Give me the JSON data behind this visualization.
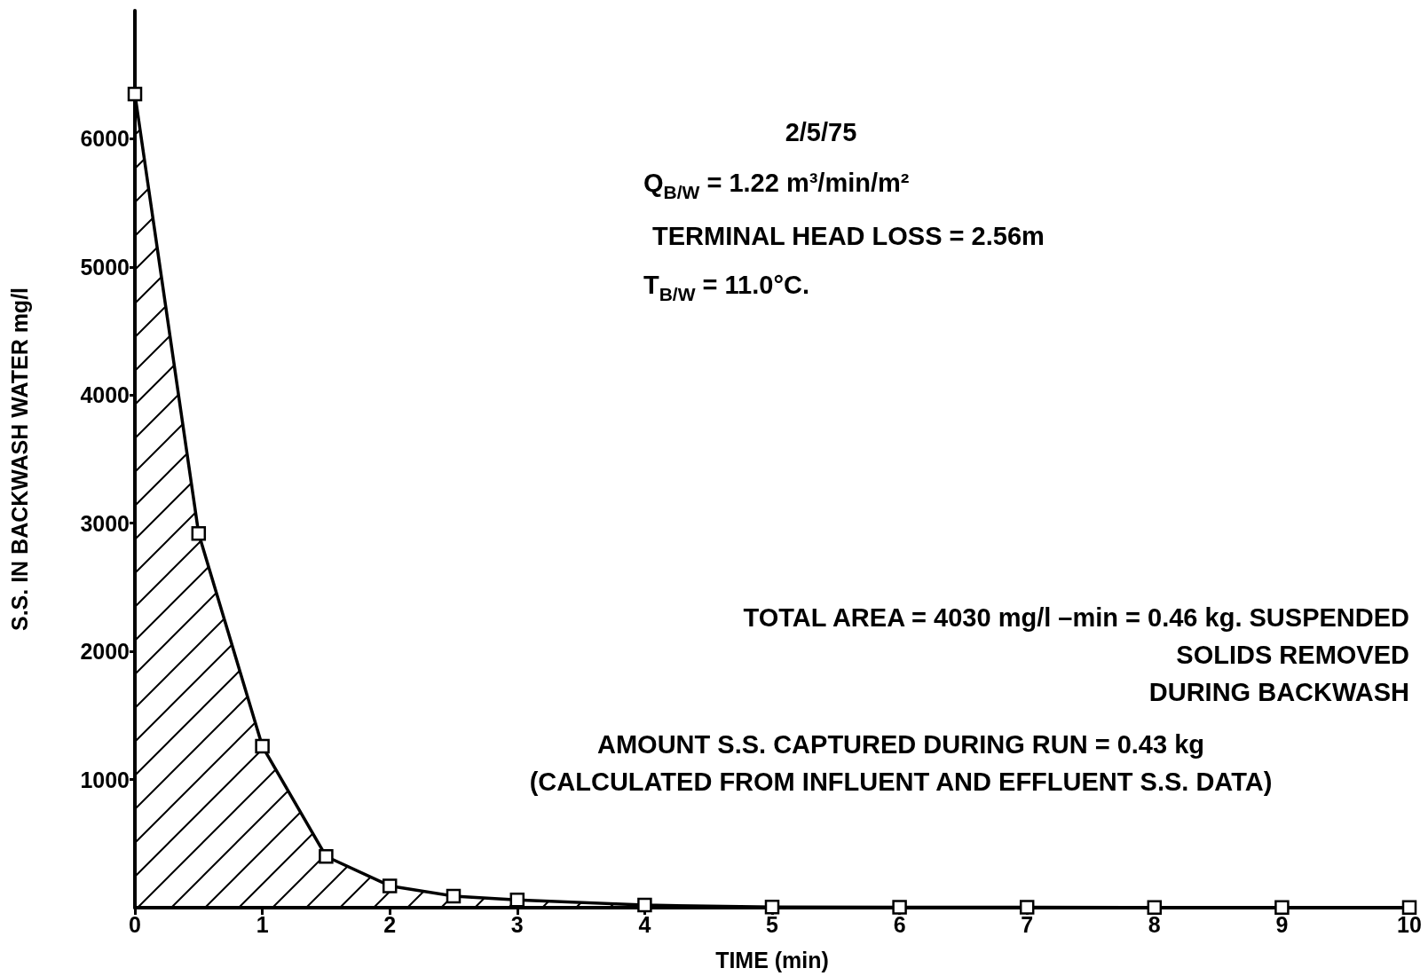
{
  "chart_data": {
    "type": "area",
    "xlabel": "TIME (min)",
    "ylabel": "S.S. IN BACKWASH WATER mg/l",
    "x": [
      0,
      0.5,
      1,
      1.5,
      2,
      2.5,
      3,
      4,
      5,
      6,
      7,
      8,
      9,
      10
    ],
    "series": [
      {
        "color": "#000000",
        "values": [
          6350,
          2920,
          1260,
          400,
          170,
          90,
          60,
          20,
          5,
          3,
          3,
          2,
          2,
          2
        ]
      }
    ],
    "xlim": [
      0,
      10
    ],
    "xticks": [
      0,
      1,
      2,
      3,
      4,
      5,
      6,
      7,
      8,
      9,
      10
    ],
    "ylim": [
      0,
      7000
    ],
    "yticks": [
      1000,
      2000,
      3000,
      4000,
      5000,
      6000
    ],
    "marker": "square",
    "line_style": "solid",
    "annotations": [
      "2/5/75",
      "Q$_{B/W}$ = 1.22 m³/min/m²",
      "TERMINAL HEAD LOSS = 2.56m",
      "T$_{B/W}$ = 11.0°C.",
      "TOTAL AREA = 4030 mg/l –min = 0.46 kg. SUSPENDED\nSOLIDS REMOVED\nDURING BACKWASH",
      "AMOUNT S.S. CAPTURED DURING RUN = 0.43 kg\n(CALCULATED FROM INFLUENT AND EFFLUENT S.S. DATA)"
    ]
  }
}
